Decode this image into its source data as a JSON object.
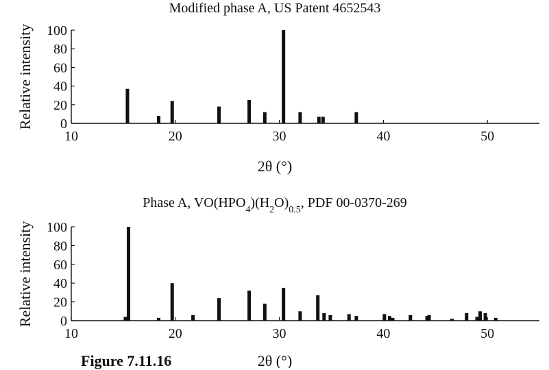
{
  "caption": "Figure 7.11.16",
  "chart_data": [
    {
      "type": "bar",
      "title": "Modified phase A, US Patent 4652543",
      "xlabel": "2θ (°)",
      "ylabel": "Relative intensity",
      "xlim": [
        10,
        55
      ],
      "ylim": [
        0,
        100
      ],
      "xticks": [
        10,
        20,
        30,
        40,
        50
      ],
      "yticks": [
        0,
        20,
        40,
        60,
        80,
        100
      ],
      "grid": false,
      "x": [
        15.4,
        18.4,
        19.7,
        24.2,
        27.1,
        28.6,
        30.4,
        32.0,
        33.8,
        34.2,
        37.4
      ],
      "values": [
        37,
        8,
        24,
        18,
        25,
        12,
        100,
        12,
        7,
        7,
        12
      ]
    },
    {
      "type": "bar",
      "title": "Phase A, VO(HPO4)(H2O)0.5, PDF 00-0370-269",
      "title_parts": [
        "Phase A, VO(HPO",
        "4",
        ")(H",
        "2",
        "O)",
        "0.5",
        ", PDF 00-0370-269"
      ],
      "xlabel": "2θ (°)",
      "ylabel": "Relative intensity",
      "xlim": [
        10,
        55
      ],
      "ylim": [
        0,
        100
      ],
      "xticks": [
        10,
        20,
        30,
        40,
        50
      ],
      "yticks": [
        0,
        20,
        40,
        60,
        80,
        100
      ],
      "grid": false,
      "x": [
        15.2,
        15.5,
        18.4,
        19.7,
        21.7,
        24.2,
        27.1,
        28.6,
        30.4,
        32.0,
        33.7,
        34.3,
        34.9,
        36.7,
        37.4,
        40.1,
        40.6,
        40.9,
        42.6,
        44.2,
        44.4,
        46.6,
        48.0,
        49.0,
        49.3,
        49.8,
        50.8
      ],
      "values": [
        4,
        100,
        3,
        40,
        6,
        24,
        32,
        18,
        35,
        10,
        27,
        8,
        6,
        7,
        5,
        7,
        5,
        3,
        6,
        5,
        6,
        2,
        8,
        4,
        10,
        8,
        3
      ]
    }
  ]
}
